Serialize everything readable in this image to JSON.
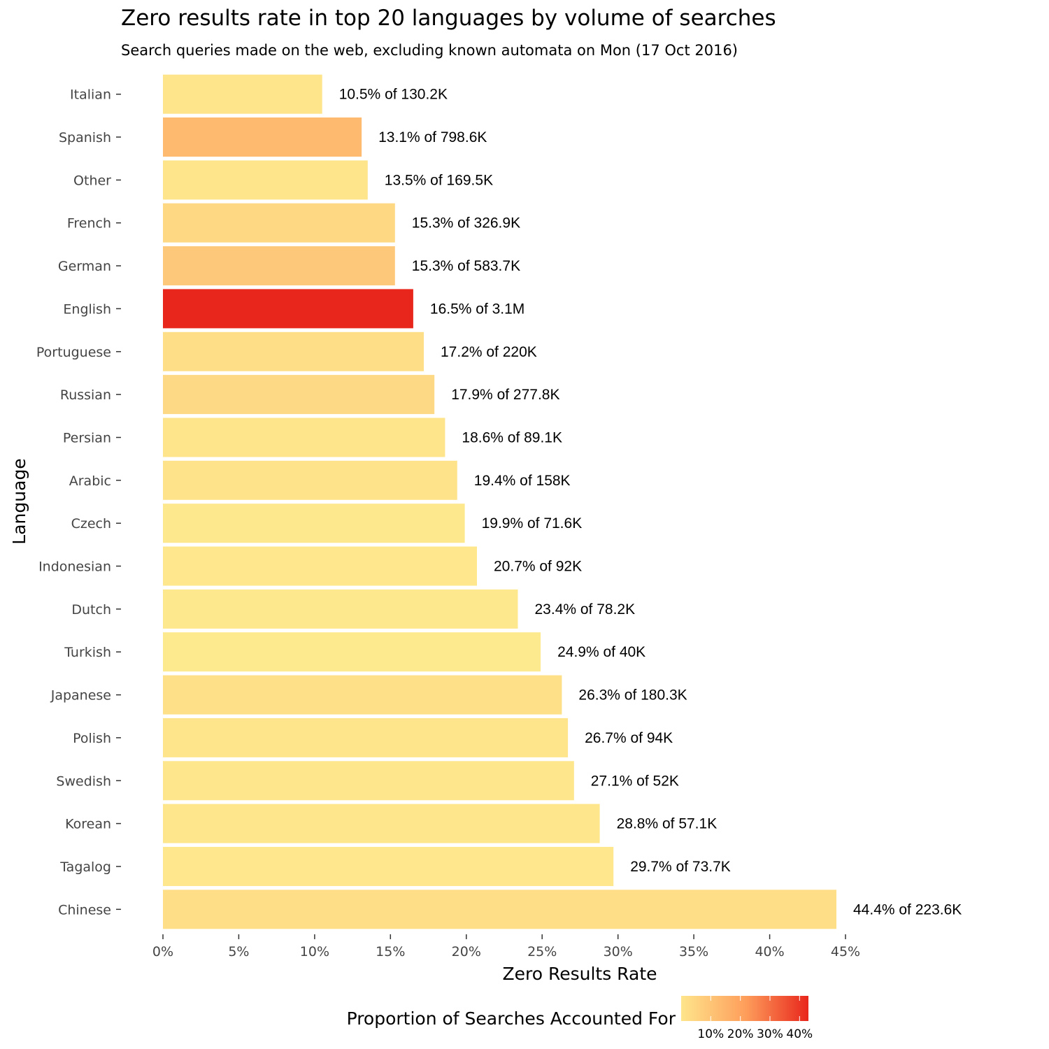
{
  "chart_data": {
    "type": "bar",
    "orientation": "horizontal",
    "title": "Zero results rate in top 20 languages by volume of searches",
    "subtitle": "Search queries made on the web, excluding known automata on Mon (17 Oct 2016)",
    "xlabel": "Zero Results Rate",
    "ylabel": "Language",
    "xlim": [
      0,
      45
    ],
    "x_ticks": [
      "0%",
      "5%",
      "10%",
      "15%",
      "20%",
      "25%",
      "30%",
      "35%",
      "40%",
      "45%"
    ],
    "grid": false,
    "categories": [
      "Italian",
      "Spanish",
      "Other",
      "French",
      "German",
      "English",
      "Portuguese",
      "Russian",
      "Persian",
      "Arabic",
      "Czech",
      "Indonesian",
      "Dutch",
      "Turkish",
      "Japanese",
      "Polish",
      "Swedish",
      "Korean",
      "Tagalog",
      "Chinese"
    ],
    "values": [
      10.5,
      13.1,
      13.5,
      15.3,
      15.3,
      16.5,
      17.2,
      17.9,
      18.6,
      19.4,
      19.9,
      20.7,
      23.4,
      24.9,
      26.3,
      26.7,
      27.1,
      28.8,
      29.7,
      44.4
    ],
    "labels": [
      "10.5% of 130.2K",
      "13.1% of 798.6K",
      "13.5% of 169.5K",
      "15.3% of 326.9K",
      "15.3% of 583.7K",
      "16.5% of 3.1M",
      "17.2% of 220K",
      "17.9% of 277.8K",
      "18.6% of 89.1K",
      "19.4% of 158K",
      "19.9% of 71.6K",
      "20.7% of 92K",
      "23.4% of 78.2K",
      "24.9% of 40K",
      "26.3% of 180.3K",
      "26.7% of 94K",
      "27.1% of 52K",
      "28.8% of 57.1K",
      "29.7% of 73.7K",
      "44.4% of 223.6K"
    ],
    "fill_colors": [
      "#fee58c",
      "#feba6e",
      "#fee58c",
      "#fed883",
      "#fec87a",
      "#e8261c",
      "#fedf88",
      "#fed985",
      "#fee58c",
      "#fee38b",
      "#fee88d",
      "#fee78d",
      "#fee88d",
      "#feea8e",
      "#fee088",
      "#fee58c",
      "#fee68c",
      "#fee68d",
      "#fee78d",
      "#fede87"
    ],
    "legend": {
      "title": "Proportion of Searches Accounted For",
      "position": "bottom",
      "ticks": [
        "10%",
        "20%",
        "30%",
        "40%"
      ],
      "tick_values": [
        10,
        20,
        30,
        40
      ],
      "range": [
        0,
        43
      ],
      "color_low": "#fee58c",
      "color_mid": "#fe9f5c",
      "color_high": "#e8261c"
    }
  }
}
